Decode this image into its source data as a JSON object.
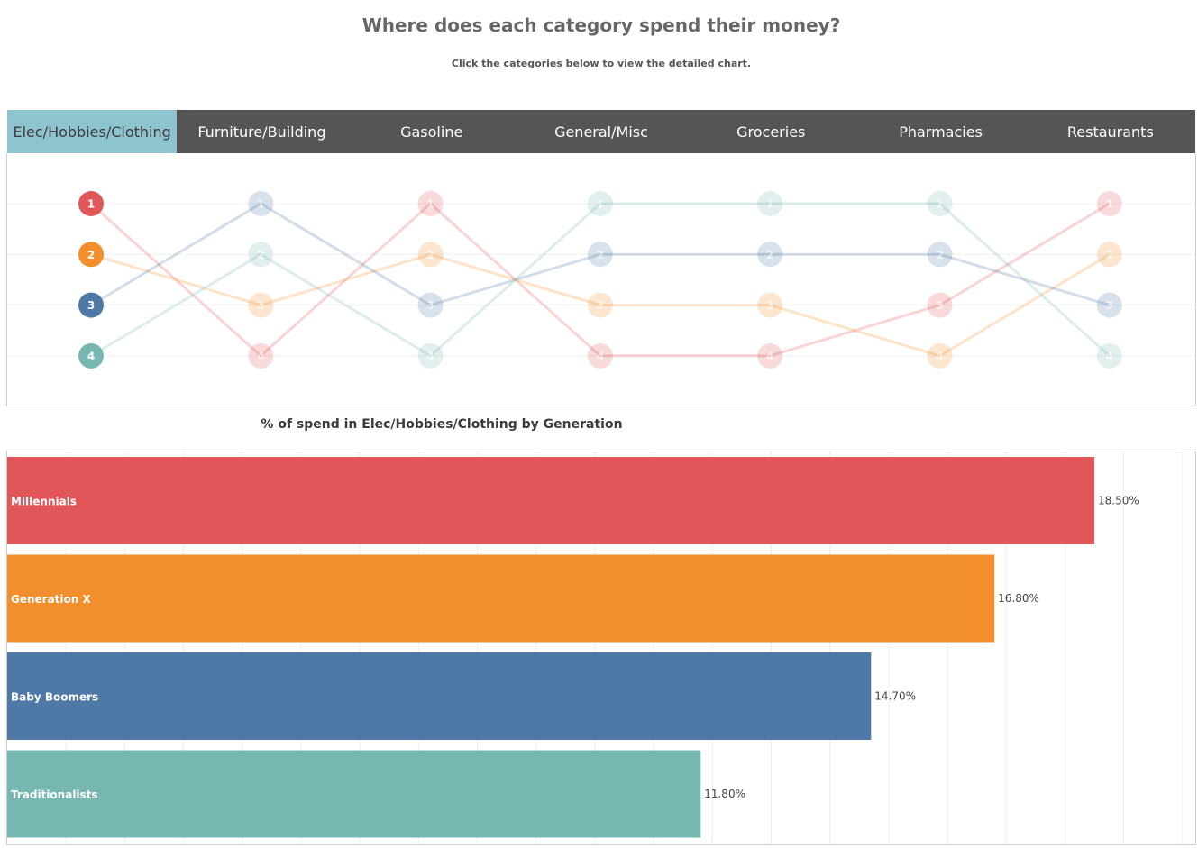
{
  "header": {
    "title": "Where does each category spend their money?",
    "subtitle": "Click the categories below to view the detailed chart."
  },
  "tabs": [
    {
      "label": "Elec/Hobbies/Clothing",
      "active": true
    },
    {
      "label": "Furniture/Building",
      "active": false
    },
    {
      "label": "Gasoline",
      "active": false
    },
    {
      "label": "General/Misc",
      "active": false
    },
    {
      "label": "Groceries",
      "active": false
    },
    {
      "label": "Pharmacies",
      "active": false
    },
    {
      "label": "Restaurants",
      "active": false
    }
  ],
  "colors": {
    "Millennials": "#e15759",
    "Generation X": "#f28e2b",
    "Baby Boomers": "#4e79a7",
    "Traditionalists": "#76b7b2",
    "active_tab": "#8ec3d0",
    "tab_bar": "#555555"
  },
  "chart_data": [
    {
      "type": "line",
      "subtype": "bump",
      "categories": [
        "Elec/Hobbies/Clothing",
        "Furniture/Building",
        "Gasoline",
        "General/Misc",
        "Groceries",
        "Pharmacies",
        "Restaurants"
      ],
      "ylim": [
        1,
        4
      ],
      "y_reversed": true,
      "highlighted_category": "Elec/Hobbies/Clothing",
      "series": [
        {
          "key": "Millennials",
          "values": [
            1,
            4,
            1,
            4,
            4,
            3,
            1
          ]
        },
        {
          "key": "Generation X",
          "values": [
            2,
            3,
            2,
            3,
            3,
            4,
            2
          ]
        },
        {
          "key": "Baby Boomers",
          "values": [
            3,
            1,
            3,
            2,
            2,
            2,
            3
          ]
        },
        {
          "key": "Traditionalists",
          "values": [
            4,
            2,
            4,
            1,
            1,
            1,
            4
          ]
        }
      ]
    },
    {
      "type": "bar",
      "orientation": "horizontal",
      "title": "% of spend in Elec/Hobbies/Clothing by Generation",
      "categories": [
        "Millennials",
        "Generation X",
        "Baby Boomers",
        "Traditionalists"
      ],
      "values": [
        18.5,
        16.8,
        14.7,
        11.8
      ],
      "value_labels": [
        "18.50%",
        "16.80%",
        "14.70%",
        "11.80%"
      ],
      "xlim": [
        0,
        20
      ],
      "grid": true
    }
  ]
}
